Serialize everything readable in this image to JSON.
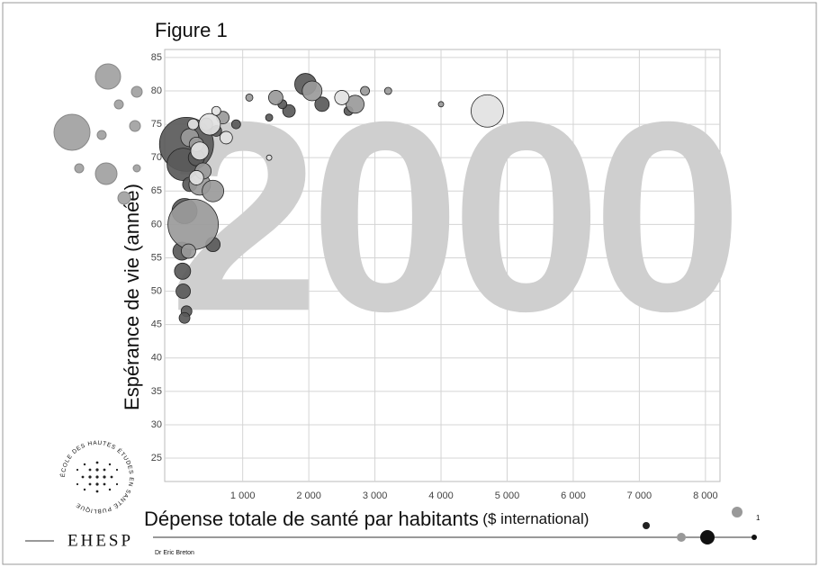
{
  "figure_label": "Figure 1",
  "author": "Dr Eric Breton",
  "logo": {
    "name": "EHESP",
    "ring": "ÉCOLE DES HAUTES ÉTUDES EN SANTÉ PUBLIQUE"
  },
  "corner_number": "1",
  "chart_data": {
    "type": "scatter",
    "watermark": "2000",
    "x_label": "Dépense totale de santé par habitants",
    "x_unit": "($ international)",
    "y_label": "Espérance de vie (année)",
    "xlim": [
      -180,
      8220
    ],
    "ylim": [
      21.5,
      86.2
    ],
    "xticks": [
      {
        "value": 1000,
        "label": "1 000"
      },
      {
        "value": 2000,
        "label": "2 000"
      },
      {
        "value": 3000,
        "label": "3 000"
      },
      {
        "value": 4000,
        "label": "4 000"
      },
      {
        "value": 5000,
        "label": "5 000"
      },
      {
        "value": 6000,
        "label": "6 000"
      },
      {
        "value": 7000,
        "label": "7 000"
      },
      {
        "value": 8000,
        "label": "8 000"
      }
    ],
    "yticks": [
      25,
      30,
      35,
      40,
      45,
      50,
      55,
      60,
      65,
      70,
      75,
      80,
      85
    ],
    "grid": true,
    "series": [
      {
        "color": "#5a5a5a",
        "x": [
          150,
          100,
          120,
          1950,
          80,
          300,
          90,
          100,
          550,
          200,
          2200,
          150,
          120,
          1700,
          600,
          900,
          1600,
          2600,
          1400
        ],
        "values": [
          72,
          69,
          62,
          81,
          56,
          70,
          53,
          50,
          57,
          66,
          78,
          47,
          46,
          77,
          74,
          75,
          78,
          77,
          76
        ],
        "sizes": [
          30,
          18,
          14,
          12,
          10,
          9,
          9,
          8,
          8,
          8,
          8,
          6,
          6,
          7,
          6,
          5,
          5,
          5,
          4
        ]
      },
      {
        "color": "#9a9a9a",
        "x": [
          250,
          350,
          550,
          2050,
          200,
          2700,
          400,
          300,
          1500,
          180,
          700,
          450,
          2850,
          3200,
          1100,
          4000
        ],
        "values": [
          60,
          66,
          65,
          80,
          73,
          78,
          68,
          72,
          79,
          56,
          76,
          75,
          80,
          80,
          79,
          78
        ],
        "sizes": [
          28,
          12,
          12,
          11,
          10,
          10,
          9,
          8,
          8,
          8,
          7,
          7,
          5,
          4,
          4,
          3
        ]
      },
      {
        "color": "#e2e2e2",
        "x": [
          4700,
          500,
          350,
          2500,
          300,
          750,
          250,
          600,
          1400
        ],
        "values": [
          77,
          75,
          71,
          79,
          67,
          73,
          75,
          77,
          70
        ],
        "sizes": [
          18,
          12,
          10,
          8,
          8,
          7,
          6,
          5,
          3
        ]
      }
    ]
  }
}
